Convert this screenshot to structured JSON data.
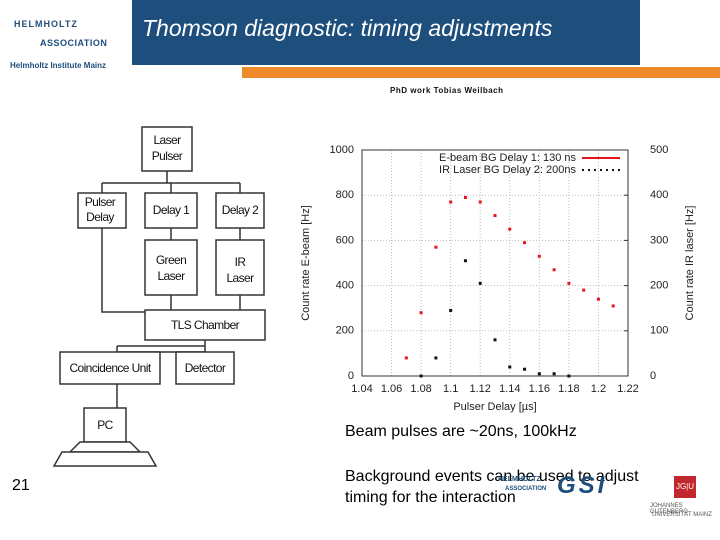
{
  "header": {
    "org_top": "HELMHOLTZ",
    "org_bottom": "ASSOCIATION",
    "institute": "Helmholtz Institute Mainz",
    "title": "Thomson diagnostic: timing adjustments"
  },
  "credit": "PhD work Tobias Weilbach",
  "diagram": {
    "nodes": [
      [
        "Laser",
        "Pulser"
      ],
      [
        "Pulser",
        "Delay"
      ],
      [
        "Delay 1"
      ],
      [
        "Delay 2"
      ],
      [
        "Green",
        "Laser"
      ],
      [
        "IR",
        "Laser"
      ],
      [
        "TLS Chamber"
      ],
      [
        "Coincidence Unit"
      ],
      [
        "Detector"
      ],
      [
        "PC"
      ]
    ]
  },
  "chart_data": {
    "type": "scatter",
    "xlabel": "Pulser Delay [µs]",
    "ylabel": "Count rate E-beam [Hz]",
    "y2label": "Count rate IR laser [Hz]",
    "xlim": [
      1.04,
      1.22
    ],
    "xticks": [
      1.04,
      1.06,
      1.08,
      1.1,
      1.12,
      1.14,
      1.16,
      1.18,
      1.2,
      1.22
    ],
    "ylim": [
      0,
      1000
    ],
    "yticks": [
      0,
      200,
      400,
      600,
      800,
      1000
    ],
    "y2lim": [
      0,
      500
    ],
    "y2ticks": [
      0,
      100,
      200,
      300,
      400,
      500
    ],
    "grid": true,
    "legend": "upper right",
    "series": [
      {
        "name": "E-beam BG Delay 1: 130 ns",
        "color": "#e8141b",
        "x": [
          1.07,
          1.08,
          1.09,
          1.1,
          1.11,
          1.12,
          1.13,
          1.14,
          1.15,
          1.16,
          1.17,
          1.18,
          1.19,
          1.2,
          1.21
        ],
        "values": [
          80,
          280,
          570,
          770,
          790,
          770,
          710,
          650,
          590,
          530,
          470,
          410,
          380,
          340,
          310
        ]
      },
      {
        "name": "IR Laser BG Delay 2: 200ns",
        "color": "#111111",
        "axis": "y2",
        "x": [
          1.08,
          1.09,
          1.1,
          1.11,
          1.12,
          1.13,
          1.14,
          1.15,
          1.16,
          1.17,
          1.18
        ],
        "values": [
          0,
          40,
          145,
          255,
          205,
          80,
          20,
          15,
          5,
          5,
          0
        ]
      }
    ]
  },
  "bullets": [
    "Beam pulses are ~20ns, 100kHz",
    "Background  events can be used to adjust timing for the  interaction"
  ],
  "page_number": "21",
  "footer": {
    "helmholtz_top": "HELMHOLTZ",
    "helmholtz_bottom": "ASSOCIATION",
    "gsi": "GSI",
    "jgu": "JG|U",
    "jgu_name_1": "JOHANNES GUTENBERG",
    "jgu_name_2": "UNIVERSITÄT MAINZ"
  }
}
